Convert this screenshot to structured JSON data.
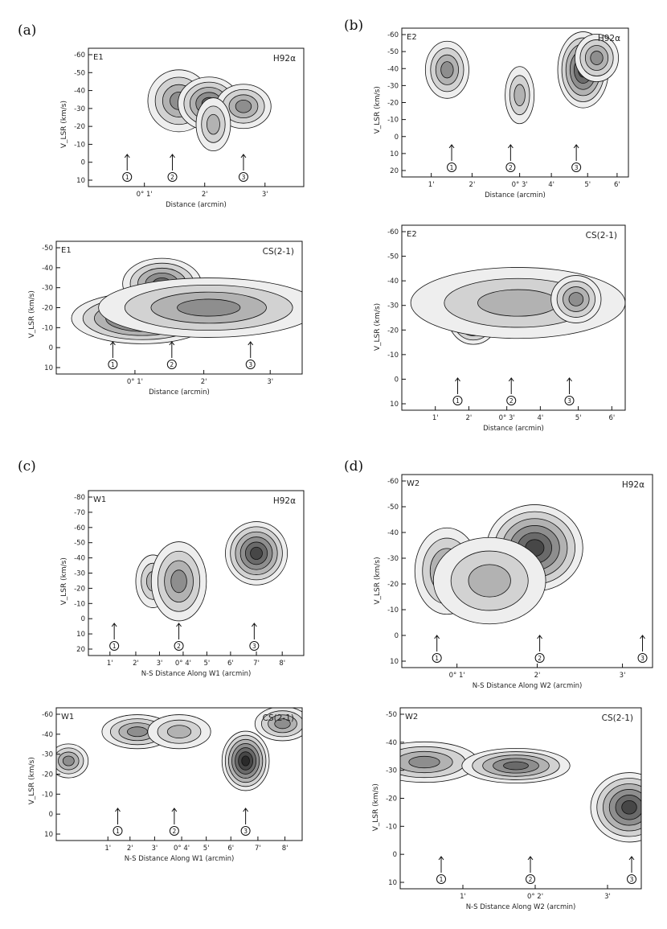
{
  "figure": {
    "panel_labels": [
      "(a)",
      "(b)",
      "(c)",
      "(d)"
    ]
  },
  "chart_data": [
    {
      "type": "heatmap",
      "id": "a-top",
      "corner_label": "E1",
      "species_label": "H92α",
      "xlabel": "Distance (arcmin)",
      "ylabel": "V_LSR (km/s)",
      "xticks": [
        "0° 1'",
        "2'",
        "3'"
      ],
      "ylim": [
        -60,
        15
      ],
      "yticks": [
        "-60",
        "-50",
        "-40",
        "-30",
        "-20",
        "-10",
        "0",
        "10"
      ],
      "markers": [
        "1",
        "2",
        "3"
      ],
      "blobs": [
        [
          0.42,
          0.38,
          0.09,
          0.14,
          3
        ],
        [
          0.56,
          0.4,
          0.09,
          0.12,
          4
        ],
        [
          0.72,
          0.42,
          0.08,
          0.1,
          3
        ],
        [
          0.58,
          0.55,
          0.05,
          0.12,
          2
        ]
      ]
    },
    {
      "type": "heatmap",
      "id": "a-bottom",
      "corner_label": "E1",
      "species_label": "CS(2-1)",
      "xlabel": "Distance (arcmin)",
      "ylabel": "V_LSR (km/s)",
      "xticks": [
        "0° 1'",
        "2'",
        "3'"
      ],
      "ylim": [
        -55,
        15
      ],
      "yticks": [
        "-50",
        "-40",
        "-30",
        "-20",
        "-10",
        "0",
        "10"
      ],
      "markers": [
        "1",
        "2",
        "3"
      ],
      "blobs": [
        [
          0.35,
          0.58,
          0.18,
          0.12,
          5
        ],
        [
          0.43,
          0.32,
          0.1,
          0.12,
          4
        ],
        [
          0.62,
          0.5,
          0.28,
          0.14,
          3
        ]
      ]
    },
    {
      "type": "heatmap",
      "id": "b-top",
      "corner_label": "E2",
      "species_label": "H92α",
      "xlabel": "Distance (arcmin)",
      "ylabel": "V_LSR (km/s)",
      "xticks": [
        "1'",
        "2'",
        "0° 3'",
        "4'",
        "5'",
        "6'"
      ],
      "ylim": [
        -60,
        20
      ],
      "yticks": [
        "-60",
        "-50",
        "-40",
        "-30",
        "-20",
        "-10",
        "0",
        "10",
        "20"
      ],
      "markers": [
        "1",
        "2",
        "3"
      ],
      "blobs": [
        [
          0.2,
          0.28,
          0.06,
          0.12,
          3
        ],
        [
          0.52,
          0.45,
          0.04,
          0.12,
          2
        ],
        [
          0.8,
          0.28,
          0.07,
          0.16,
          5
        ],
        [
          0.86,
          0.2,
          0.06,
          0.1,
          3
        ]
      ]
    },
    {
      "type": "heatmap",
      "id": "b-bottom",
      "corner_label": "E2",
      "species_label": "CS(2-1)",
      "xlabel": "Distance (arcmin)",
      "ylabel": "V_LSR (km/s)",
      "xticks": [
        "1'",
        "2'",
        "0° 3'",
        "4'",
        "5'",
        "6'"
      ],
      "ylim": [
        -60,
        15
      ],
      "yticks": [
        "-60",
        "-50",
        "-40",
        "-30",
        "-20",
        "-10",
        "0",
        "10"
      ],
      "markers": [
        "1",
        "2",
        "3"
      ],
      "blobs": [
        [
          0.32,
          0.5,
          0.07,
          0.09,
          5
        ],
        [
          0.52,
          0.42,
          0.3,
          0.12,
          2
        ],
        [
          0.78,
          0.4,
          0.07,
          0.08,
          3
        ]
      ]
    },
    {
      "type": "heatmap",
      "id": "c-top",
      "corner_label": "W1",
      "species_label": "H92α",
      "xlabel": "N-S Distance Along W1 (arcmin)",
      "ylabel": "V_LSR (km/s)",
      "xticks": [
        "1'",
        "2'",
        "3'",
        "0° 4'",
        "5'",
        "6'",
        "7'",
        "8'"
      ],
      "ylim": [
        -80,
        20
      ],
      "yticks": [
        "-80",
        "-70",
        "-60",
        "-50",
        "-40",
        "-30",
        "-20",
        "-10",
        "0",
        "10",
        "20"
      ],
      "markers": [
        "1",
        "2",
        "3"
      ],
      "blobs": [
        [
          0.3,
          0.55,
          0.05,
          0.1,
          2
        ],
        [
          0.42,
          0.55,
          0.08,
          0.15,
          3
        ],
        [
          0.78,
          0.38,
          0.09,
          0.12,
          5
        ]
      ]
    },
    {
      "type": "heatmap",
      "id": "c-bottom",
      "corner_label": "W1",
      "species_label": "CS(2-1)",
      "xlabel": "N-S Distance Along W1 (arcmin)",
      "ylabel": "V_LSR (km/s)",
      "xticks": [
        "1'",
        "2'",
        "3'",
        "0° 4'",
        "5'",
        "6'",
        "7'",
        "8'"
      ],
      "ylim": [
        -60,
        15
      ],
      "yticks": [
        "-60",
        "-40",
        "-30",
        "-20",
        "-10",
        "0",
        "10"
      ],
      "markers": [
        "1",
        "2",
        "3"
      ],
      "blobs": [
        [
          0.05,
          0.4,
          0.05,
          0.08,
          3
        ],
        [
          0.33,
          0.18,
          0.09,
          0.08,
          3
        ],
        [
          0.5,
          0.18,
          0.08,
          0.08,
          2
        ],
        [
          0.77,
          0.4,
          0.06,
          0.14,
          6
        ],
        [
          0.92,
          0.12,
          0.07,
          0.08,
          3
        ]
      ]
    },
    {
      "type": "heatmap",
      "id": "d-top",
      "corner_label": "W2",
      "species_label": "H92α",
      "xlabel": "N-S Distance Along W2 (arcmin)",
      "ylabel": "V_LSR (km/s)",
      "xticks": [
        "0° 1'",
        "2'",
        "3'"
      ],
      "ylim": [
        -60,
        15
      ],
      "yticks": [
        "-60",
        "-50",
        "-40",
        "-30",
        "-20",
        "-10",
        "0",
        "10"
      ],
      "markers": [
        "1",
        "2",
        "3"
      ],
      "blobs": [
        [
          0.18,
          0.5,
          0.08,
          0.14,
          3
        ],
        [
          0.53,
          0.38,
          0.12,
          0.14,
          5
        ],
        [
          0.35,
          0.55,
          0.14,
          0.14,
          2
        ]
      ]
    },
    {
      "type": "heatmap",
      "id": "d-bottom",
      "corner_label": "W2",
      "species_label": "CS(2-1)",
      "xlabel": "N-S Distance Along W2 (arcmin)",
      "ylabel": "V_LSR (km/s)",
      "xticks": [
        "1'",
        "0° 2'",
        "3'"
      ],
      "ylim": [
        -50,
        15
      ],
      "yticks": [
        "-50",
        "-40",
        "-30",
        "-20",
        "-10",
        "0",
        "10"
      ],
      "markers": [
        "1",
        "2",
        "3"
      ],
      "blobs": [
        [
          0.1,
          0.3,
          0.14,
          0.07,
          3
        ],
        [
          0.48,
          0.32,
          0.14,
          0.06,
          4
        ],
        [
          0.95,
          0.55,
          0.1,
          0.12,
          5
        ]
      ]
    }
  ]
}
